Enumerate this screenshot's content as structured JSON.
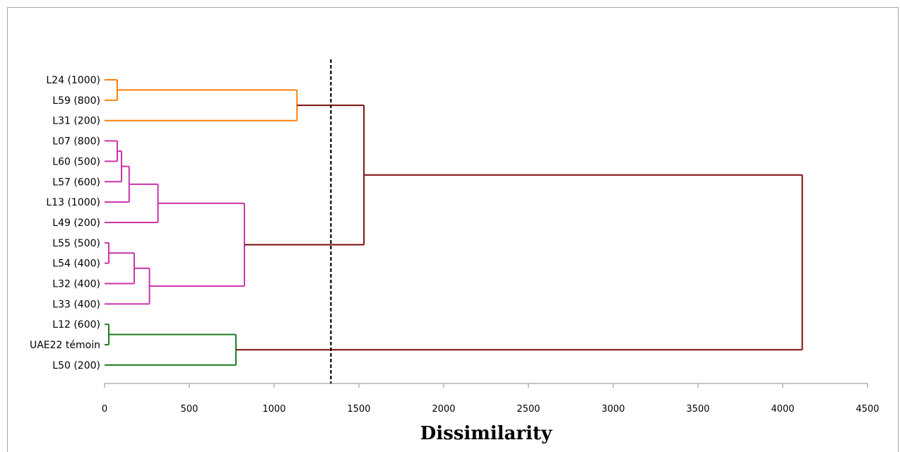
{
  "chart_data": {
    "type": "dendrogram",
    "xlabel": "Dissimilarity",
    "xlim": [
      0,
      4500
    ],
    "xticks": [
      0,
      500,
      1000,
      1500,
      2000,
      2500,
      3000,
      3500,
      4000,
      4500
    ],
    "cut_line": 1335,
    "leaves": [
      "L24 (1000)",
      "L59 (800)",
      "L31 (200)",
      "L07 (800)",
      "L60 (500)",
      "L57 (600)",
      "L13 (1000)",
      "L49 (200)",
      "L55 (500)",
      "L54 (400)",
      "L32 (400)",
      "L33 (400)",
      "L12 (600)",
      "UAE22 témoin",
      "L50 (200)"
    ],
    "colors": {
      "cluster1": "#ff7f0e",
      "cluster2": "#cc33aa",
      "cluster3": "#1e7d1e",
      "root": "#7a0c0c"
    },
    "merges": [
      {
        "left": "L24 (1000)",
        "right": "L59 (800)",
        "height": 75,
        "color": "cluster1"
      },
      {
        "left": "M1",
        "right": "L31 (200)",
        "height": 1135,
        "color": "cluster1"
      },
      {
        "left": "L07 (800)",
        "right": "L60 (500)",
        "height": 75,
        "color": "cluster2"
      },
      {
        "left": "M3",
        "right": "L57 (600)",
        "height": 100,
        "color": "cluster2"
      },
      {
        "left": "M4",
        "right": "L13 (1000)",
        "height": 145,
        "color": "cluster2"
      },
      {
        "left": "M5",
        "right": "L49 (200)",
        "height": 315,
        "color": "cluster2"
      },
      {
        "left": "L55 (500)",
        "right": "L54 (400)",
        "height": 25,
        "color": "cluster2"
      },
      {
        "left": "M7",
        "right": "L32 (400)",
        "height": 175,
        "color": "cluster2"
      },
      {
        "left": "M8",
        "right": "L33 (400)",
        "height": 265,
        "color": "cluster2"
      },
      {
        "left": "M6",
        "right": "M9",
        "height": 825,
        "color": "cluster2"
      },
      {
        "left": "L12 (600)",
        "right": "UAE22 témoin",
        "height": 25,
        "color": "cluster3"
      },
      {
        "left": "M11",
        "right": "L50 (200)",
        "height": 775,
        "color": "cluster3"
      },
      {
        "left": "M2",
        "right": "M10",
        "height": 1530,
        "color": "root"
      },
      {
        "left": "M13",
        "right": "M12",
        "height": 4115,
        "color": "root"
      }
    ]
  }
}
